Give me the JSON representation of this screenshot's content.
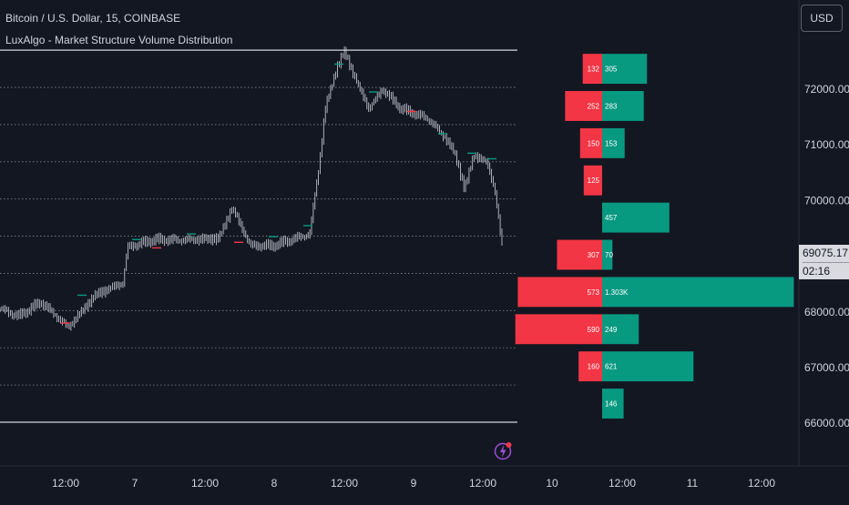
{
  "header": {
    "symbol_title": "Bitcoin / U.S. Dollar, 15, COINBASE",
    "indicator_title": "LuxAlgo - Market Structure Volume Distribution"
  },
  "price_axis": {
    "currency_button": "USD",
    "tick_labels": [
      "72000.00",
      "71000.00",
      "70000.00",
      "68000.00",
      "67000.00",
      "66000.00"
    ],
    "last_price": "69075.17",
    "countdown": "02:16"
  },
  "time_axis": {
    "tick_labels": [
      "12:00",
      "7",
      "12:00",
      "8",
      "12:00",
      "9",
      "12:00",
      "10",
      "12:00",
      "11",
      "12:00"
    ]
  },
  "colors": {
    "background": "#131722",
    "bull": "#089981",
    "bear": "#f23645",
    "candle": "#d1d4dc",
    "gridline": "#b2b5be"
  },
  "chart_data": {
    "type": "candlestick-with-volume-profile",
    "title": "Bitcoin / U.S. Dollar, 15, COINBASE",
    "indicator": "LuxAlgo - Market Structure Volume Distribution",
    "y_axis": {
      "ylim": [
        65800,
        72950
      ],
      "ticks": [
        72000,
        71000,
        70000,
        68000,
        67000,
        66000
      ]
    },
    "last_price": 69075.17,
    "range_high": 72700,
    "range_low": 66020,
    "price_path": [
      [
        0,
        68060
      ],
      [
        20,
        67920
      ],
      [
        45,
        68180
      ],
      [
        75,
        67720
      ],
      [
        105,
        68310
      ],
      [
        120,
        68420
      ],
      [
        135,
        68520
      ],
      [
        140,
        69160
      ],
      [
        170,
        69300
      ],
      [
        200,
        69290
      ],
      [
        240,
        69320
      ],
      [
        255,
        69870
      ],
      [
        275,
        69190
      ],
      [
        300,
        69190
      ],
      [
        340,
        69400
      ],
      [
        350,
        70600
      ],
      [
        357,
        71650
      ],
      [
        370,
        72400
      ],
      [
        378,
        72680
      ],
      [
        395,
        72000
      ],
      [
        405,
        71650
      ],
      [
        420,
        72000
      ],
      [
        440,
        71650
      ],
      [
        470,
        71470
      ],
      [
        490,
        71100
      ],
      [
        500,
        70820
      ],
      [
        510,
        70200
      ],
      [
        520,
        70820
      ],
      [
        535,
        70680
      ],
      [
        543,
        70200
      ],
      [
        552,
        69075
      ]
    ],
    "volume_distribution": [
      {
        "bear": "132",
        "bull": "305",
        "bear_value": 132,
        "bull_value": 305
      },
      {
        "bear": "252",
        "bull": "283",
        "bear_value": 252,
        "bull_value": 283
      },
      {
        "bear": "150",
        "bull": "153",
        "bear_value": 150,
        "bull_value": 153
      },
      {
        "bear": "125",
        "bull": "",
        "bear_value": 125,
        "bull_value": 0
      },
      {
        "bear": "",
        "bull": "457",
        "bear_value": 0,
        "bull_value": 457
      },
      {
        "bear": "307",
        "bull": "70",
        "bear_value": 307,
        "bull_value": 70
      },
      {
        "bear": "573",
        "bull": "1.303K",
        "bear_value": 573,
        "bull_value": 1303
      },
      {
        "bear": "590",
        "bull": "249",
        "bear_value": 590,
        "bull_value": 249
      },
      {
        "bear": "160",
        "bull": "621",
        "bear_value": 160,
        "bull_value": 621
      },
      {
        "bear": "",
        "bull": "146",
        "bear_value": 0,
        "bull_value": 146
      }
    ]
  }
}
